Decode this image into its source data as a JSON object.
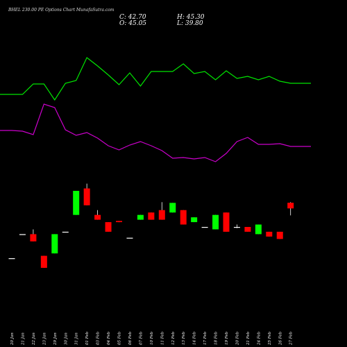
{
  "title": "BHEL 230.00 PE Options Chart MunafaSutra.com",
  "ohlc": {
    "close": "C: 42.70",
    "high": "H: 45.30",
    "open": "O: 45.05",
    "low": "L: 39.80"
  },
  "colors": {
    "background": "#000000",
    "up": "#00ff00",
    "down": "#ff0000",
    "line_upper": "#00e600",
    "line_lower": "#cc00cc",
    "axis_text": "#ffffff"
  },
  "chart_data": {
    "type": "candlestick",
    "dates": [
      "20 Jan",
      "21 Jan",
      "22 Jan",
      "23 Jan",
      "29 Jan",
      "30 Jan",
      "31 Jan",
      "01 Feb",
      "03 Feb",
      "04 Feb",
      "05 Feb",
      "06 Feb",
      "07 Feb",
      "10 Feb",
      "11 Feb",
      "12 Feb",
      "13 Feb",
      "14 Feb",
      "17 Feb",
      "18 Feb",
      "19 Feb",
      "20 Feb",
      "21 Feb",
      "24 Feb",
      "25 Feb",
      "26 Feb",
      "27 Feb"
    ],
    "candles": [
      {
        "open": 22,
        "high": 22,
        "low": 22,
        "close": 22
      },
      {
        "open": 32,
        "high": 32,
        "low": 32,
        "close": 32
      },
      {
        "open": 32,
        "high": 34,
        "low": 29,
        "close": 29
      },
      {
        "open": 23,
        "high": 23,
        "low": 18,
        "close": 18
      },
      {
        "open": 24,
        "high": 32,
        "low": 24,
        "close": 32
      },
      {
        "open": 33,
        "high": 33,
        "low": 33,
        "close": 33
      },
      {
        "open": 40,
        "high": 50,
        "low": 40,
        "close": 50
      },
      {
        "open": 51,
        "high": 53,
        "low": 44,
        "close": 44
      },
      {
        "open": 40,
        "high": 42,
        "low": 38,
        "close": 38
      },
      {
        "open": 37,
        "high": 37,
        "low": 33,
        "close": 33
      },
      {
        "open": 37.5,
        "high": 37.5,
        "low": 37,
        "close": 37
      },
      {
        "open": 30.5,
        "high": 30.5,
        "low": 30.5,
        "close": 30.5
      },
      {
        "open": 38,
        "high": 40,
        "low": 38,
        "close": 40
      },
      {
        "open": 41,
        "high": 41,
        "low": 38,
        "close": 38
      },
      {
        "open": 42,
        "high": 45.3,
        "low": 38,
        "close": 38
      },
      {
        "open": 41,
        "high": 45,
        "low": 41,
        "close": 45
      },
      {
        "open": 42,
        "high": 42,
        "low": 36,
        "close": 36
      },
      {
        "open": 37,
        "high": 39,
        "low": 37,
        "close": 39
      },
      {
        "open": 35,
        "high": 35,
        "low": 35,
        "close": 35
      },
      {
        "open": 34,
        "high": 40,
        "low": 34,
        "close": 40
      },
      {
        "open": 41,
        "high": 41,
        "low": 33,
        "close": 33
      },
      {
        "open": 35,
        "high": 36,
        "low": 34.5,
        "close": 35
      },
      {
        "open": 35,
        "high": 35,
        "low": 33,
        "close": 33
      },
      {
        "open": 32,
        "high": 36,
        "low": 32,
        "close": 36
      },
      {
        "open": 33,
        "high": 33,
        "low": 31,
        "close": 31
      },
      {
        "open": 33,
        "high": 33,
        "low": 30,
        "close": 30
      },
      {
        "open": 45.05,
        "high": 45.3,
        "low": 39.8,
        "close": 42.7
      }
    ],
    "upper_line": [
      136,
      136,
      121,
      121,
      144,
      120,
      116,
      83,
      95,
      108,
      122,
      105,
      124,
      103,
      103,
      103,
      92,
      106,
      103,
      115,
      102,
      113,
      110,
      115,
      110,
      117,
      120
    ],
    "lower_line": [
      188,
      189,
      194,
      150,
      155,
      187,
      195,
      191,
      199,
      210,
      216,
      209,
      204,
      210,
      217,
      228,
      227,
      229,
      227,
      233,
      221,
      204,
      198,
      208,
      208,
      207,
      211
    ],
    "ylim": [
      0,
      60
    ]
  }
}
